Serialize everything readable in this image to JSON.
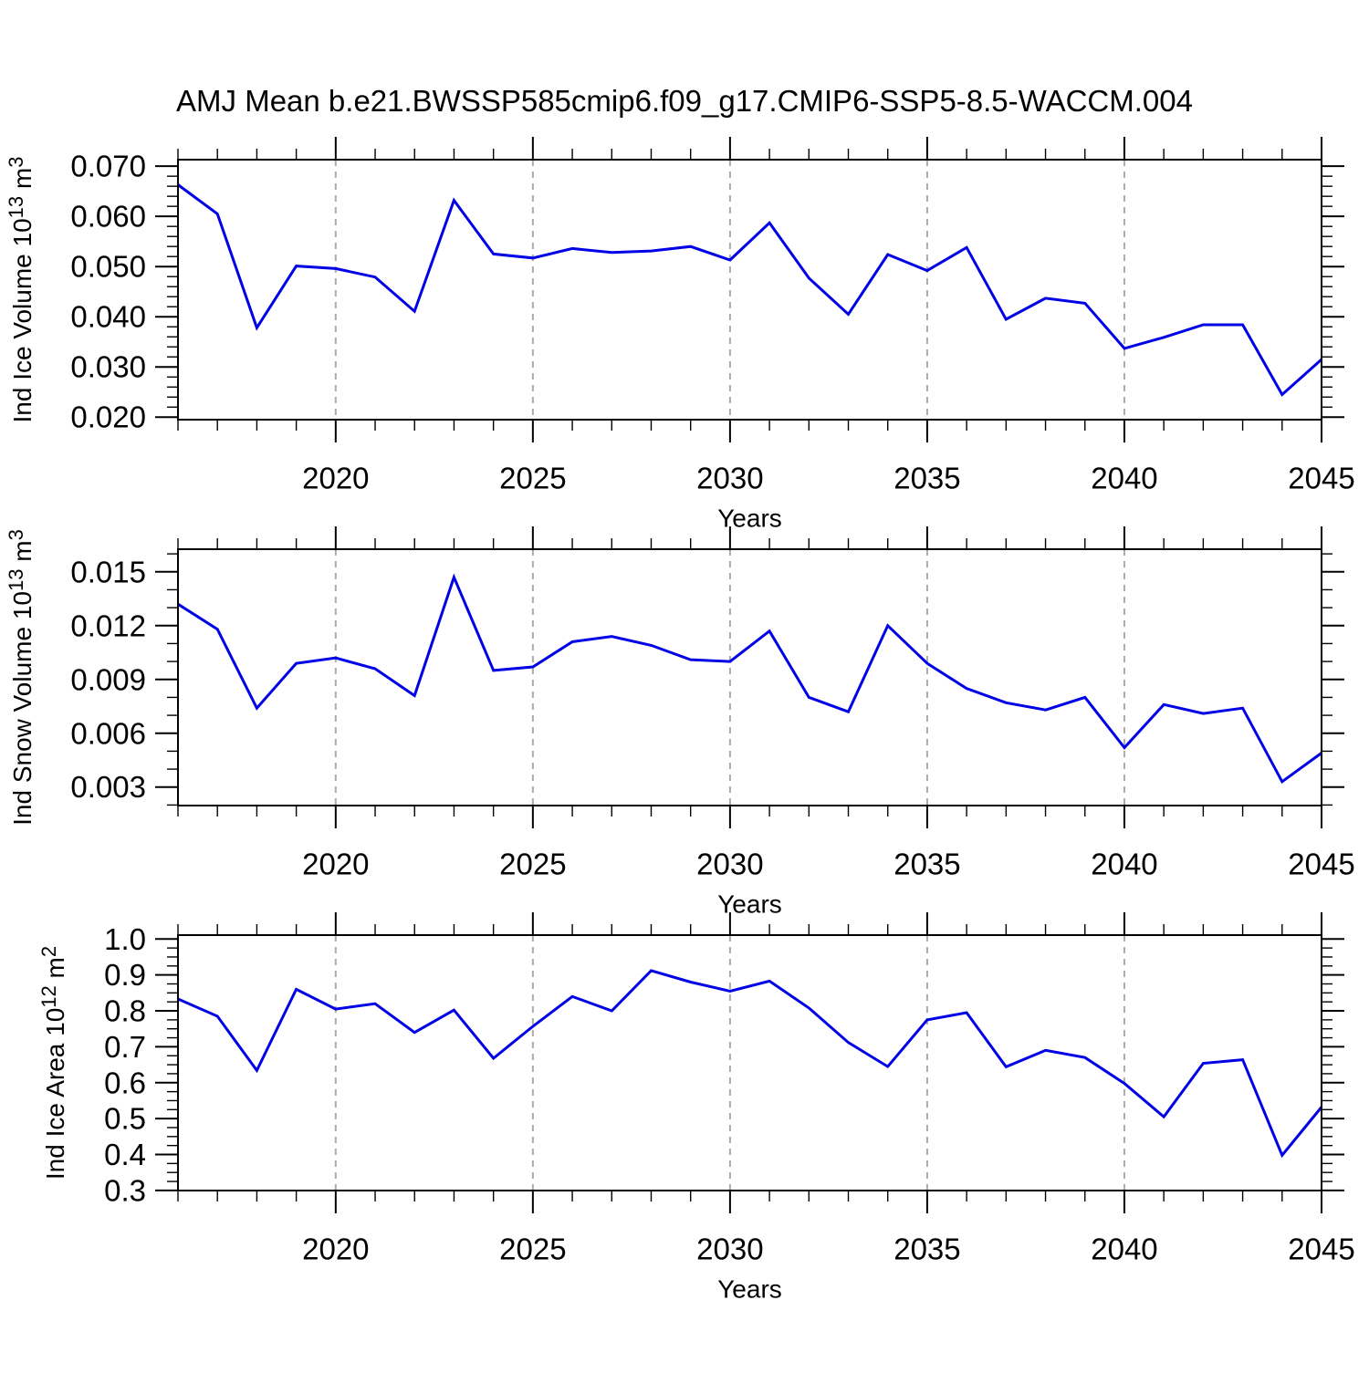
{
  "title": "AMJ Mean b.e21.BWSSP585cmip6.f09_g17.CMIP6-SSP5-8.5-WACCM.004",
  "colors": {
    "line": "#0000E6",
    "grid": "#ABABAB",
    "axis": "#000000"
  },
  "years": [
    2016,
    2017,
    2018,
    2019,
    2020,
    2021,
    2022,
    2023,
    2024,
    2025,
    2026,
    2027,
    2028,
    2029,
    2030,
    2031,
    2032,
    2033,
    2034,
    2035,
    2036,
    2037,
    2038,
    2039,
    2040,
    2041,
    2042,
    2043,
    2044,
    2045
  ],
  "chart_data": [
    {
      "type": "line",
      "id": "ice-volume",
      "ylabel": {
        "prefix": "Ind Ice Volume 10",
        "sup1": "13",
        "mid": " m",
        "sup2": "3"
      },
      "xlabel": "Years",
      "x": [
        2016,
        2017,
        2018,
        2019,
        2020,
        2021,
        2022,
        2023,
        2024,
        2025,
        2026,
        2027,
        2028,
        2029,
        2030,
        2031,
        2032,
        2033,
        2034,
        2035,
        2036,
        2037,
        2038,
        2039,
        2040,
        2041,
        2042,
        2043,
        2044,
        2045
      ],
      "values": [
        0.0663,
        0.0605,
        0.0378,
        0.0501,
        0.0496,
        0.0479,
        0.0411,
        0.0632,
        0.0525,
        0.0517,
        0.0536,
        0.0528,
        0.0531,
        0.054,
        0.0513,
        0.0587,
        0.0477,
        0.0405,
        0.0524,
        0.0492,
        0.0538,
        0.0395,
        0.0437,
        0.0427,
        0.0337,
        0.0359,
        0.0384,
        0.0384,
        0.0245,
        0.0315
      ],
      "xlim": [
        2016,
        2045
      ],
      "ylim": [
        0.0195,
        0.0713
      ],
      "xticks": [
        2020,
        2025,
        2030,
        2035,
        2040,
        2045
      ],
      "xtick_labels": [
        "2020",
        "2025",
        "2030",
        "2035",
        "2040",
        "2045"
      ],
      "x_minor_step": 1,
      "yticks": [
        0.02,
        0.03,
        0.04,
        0.05,
        0.06,
        0.07
      ],
      "ytick_labels": [
        "0.020",
        "0.030",
        "0.040",
        "0.050",
        "0.060",
        "0.070"
      ],
      "y_minor_step": 0.002,
      "grid_years": [
        2020,
        2025,
        2030,
        2035,
        2040
      ],
      "grid_style": "dashed"
    },
    {
      "type": "line",
      "id": "snow-volume",
      "ylabel": {
        "prefix": "Ind Snow Volume 10",
        "sup1": "13",
        "mid": " m",
        "sup2": "3"
      },
      "xlabel": "Years",
      "x": [
        2016,
        2017,
        2018,
        2019,
        2020,
        2021,
        2022,
        2023,
        2024,
        2025,
        2026,
        2027,
        2028,
        2029,
        2030,
        2031,
        2032,
        2033,
        2034,
        2035,
        2036,
        2037,
        2038,
        2039,
        2040,
        2041,
        2042,
        2043,
        2044,
        2045
      ],
      "values": [
        0.0132,
        0.0118,
        0.0074,
        0.0099,
        0.0102,
        0.0096,
        0.0081,
        0.0147,
        0.0095,
        0.0097,
        0.0111,
        0.0114,
        0.0109,
        0.0101,
        0.01,
        0.0117,
        0.008,
        0.0072,
        0.012,
        0.0099,
        0.0085,
        0.0077,
        0.0073,
        0.008,
        0.0052,
        0.0076,
        0.0071,
        0.0074,
        0.0033,
        0.0049
      ],
      "xlim": [
        2016,
        2045
      ],
      "ylim": [
        0.00197,
        0.01626
      ],
      "xticks": [
        2020,
        2025,
        2030,
        2035,
        2040,
        2045
      ],
      "xtick_labels": [
        "2020",
        "2025",
        "2030",
        "2035",
        "2040",
        "2045"
      ],
      "x_minor_step": 1,
      "yticks": [
        0.003,
        0.006,
        0.009,
        0.012,
        0.015
      ],
      "ytick_labels": [
        "0.003",
        "0.006",
        "0.009",
        "0.012",
        "0.015"
      ],
      "y_minor_step": 0.001,
      "grid_years": [
        2020,
        2025,
        2030,
        2035,
        2040
      ],
      "grid_style": "dashed"
    },
    {
      "type": "line",
      "id": "ice-area",
      "ylabel": {
        "prefix": "Ind Ice Area 10",
        "sup1": "12",
        "mid": " m",
        "sup2": "2"
      },
      "xlabel": "Years",
      "x": [
        2016,
        2017,
        2018,
        2019,
        2020,
        2021,
        2022,
        2023,
        2024,
        2025,
        2026,
        2027,
        2028,
        2029,
        2030,
        2031,
        2032,
        2033,
        2034,
        2035,
        2036,
        2037,
        2038,
        2039,
        2040,
        2041,
        2042,
        2043,
        2044,
        2045
      ],
      "values": [
        0.833,
        0.785,
        0.634,
        0.86,
        0.805,
        0.82,
        0.74,
        0.802,
        0.668,
        0.757,
        0.84,
        0.8,
        0.912,
        0.88,
        0.855,
        0.883,
        0.808,
        0.712,
        0.645,
        0.775,
        0.795,
        0.644,
        0.69,
        0.67,
        0.598,
        0.505,
        0.654,
        0.664,
        0.398,
        0.532
      ],
      "xlim": [
        2016,
        2045
      ],
      "ylim": [
        0.2997,
        1.0109
      ],
      "xticks": [
        2020,
        2025,
        2030,
        2035,
        2040,
        2045
      ],
      "xtick_labels": [
        "2020",
        "2025",
        "2030",
        "2035",
        "2040",
        "2045"
      ],
      "x_minor_step": 1,
      "yticks": [
        0.3,
        0.4,
        0.5,
        0.6,
        0.7,
        0.8,
        0.9,
        1.0
      ],
      "ytick_labels": [
        "0.3",
        "0.4",
        "0.5",
        "0.6",
        "0.7",
        "0.8",
        "0.9",
        "1.0"
      ],
      "y_minor_step": 0.025,
      "grid_years": [
        2020,
        2025,
        2030,
        2035,
        2040
      ],
      "grid_style": "dashed"
    }
  ]
}
